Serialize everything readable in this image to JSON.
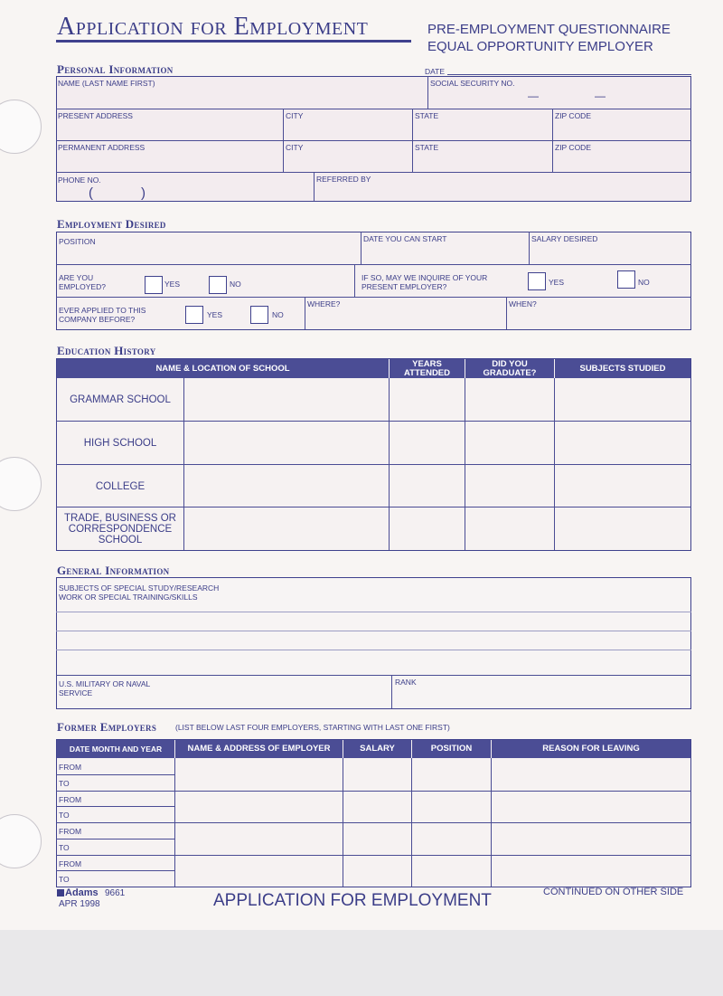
{
  "header": {
    "title": "Application for Employment",
    "subtitle1": "PRE-EMPLOYMENT QUESTIONNAIRE",
    "subtitle2": "EQUAL OPPORTUNITY EMPLOYER"
  },
  "personal": {
    "heading": "Personal Information",
    "date_label": "DATE",
    "name": "NAME (LAST NAME FIRST)",
    "ssn": "SOCIAL SECURITY NO.",
    "ssn_dash": "—",
    "present_address": "PRESENT ADDRESS",
    "permanent_address": "PERMANENT ADDRESS",
    "city": "CITY",
    "state": "STATE",
    "zip": "ZIP CODE",
    "phone": "PHONE NO.",
    "phone_open": "(",
    "phone_close": ")",
    "referred_by": "REFERRED BY"
  },
  "employment": {
    "heading": "Employment Desired",
    "position": "POSITION",
    "date_start": "DATE YOU CAN START",
    "salary": "SALARY DESIRED",
    "are_you_employed": "ARE YOU EMPLOYED?",
    "may_we_inquire": "IF SO, MAY WE INQUIRE OF YOUR PRESENT EMPLOYER?",
    "ever_applied": "EVER APPLIED TO THIS COMPANY BEFORE?",
    "where": "WHERE?",
    "when": "WHEN?",
    "yes": "YES",
    "no": "NO"
  },
  "education": {
    "heading": "Education History",
    "columns": [
      "NAME & LOCATION OF SCHOOL",
      "YEARS ATTENDED",
      "DID YOU GRADUATE?",
      "SUBJECTS STUDIED"
    ],
    "rows": [
      "GRAMMAR SCHOOL",
      "HIGH SCHOOL",
      "COLLEGE",
      "TRADE, BUSINESS OR CORRESPONDENCE SCHOOL"
    ]
  },
  "general": {
    "heading": "General Information",
    "subjects": "SUBJECTS OF SPECIAL STUDY/RESEARCH",
    "work": "WORK OR SPECIAL TRAINING/SKILLS",
    "military": "U.S. MILITARY OR NAVAL SERVICE",
    "rank": "RANK"
  },
  "former": {
    "heading": "Former Employers",
    "note": "(LIST BELOW LAST FOUR EMPLOYERS, STARTING WITH LAST ONE FIRST)",
    "columns": [
      "DATE MONTH AND YEAR",
      "NAME & ADDRESS OF EMPLOYER",
      "SALARY",
      "POSITION",
      "REASON FOR LEAVING"
    ],
    "from": "FROM",
    "to": "TO"
  },
  "footer": {
    "brand": "Adams",
    "form_no": "9661",
    "date": "APR 1998",
    "title": "APPLICATION FOR EMPLOYMENT",
    "continued": "CONTINUED ON OTHER SIDE"
  },
  "colors": {
    "ink": "#3b3d88",
    "header_fill": "#4b4d95",
    "paper": "#f8f5f3"
  }
}
